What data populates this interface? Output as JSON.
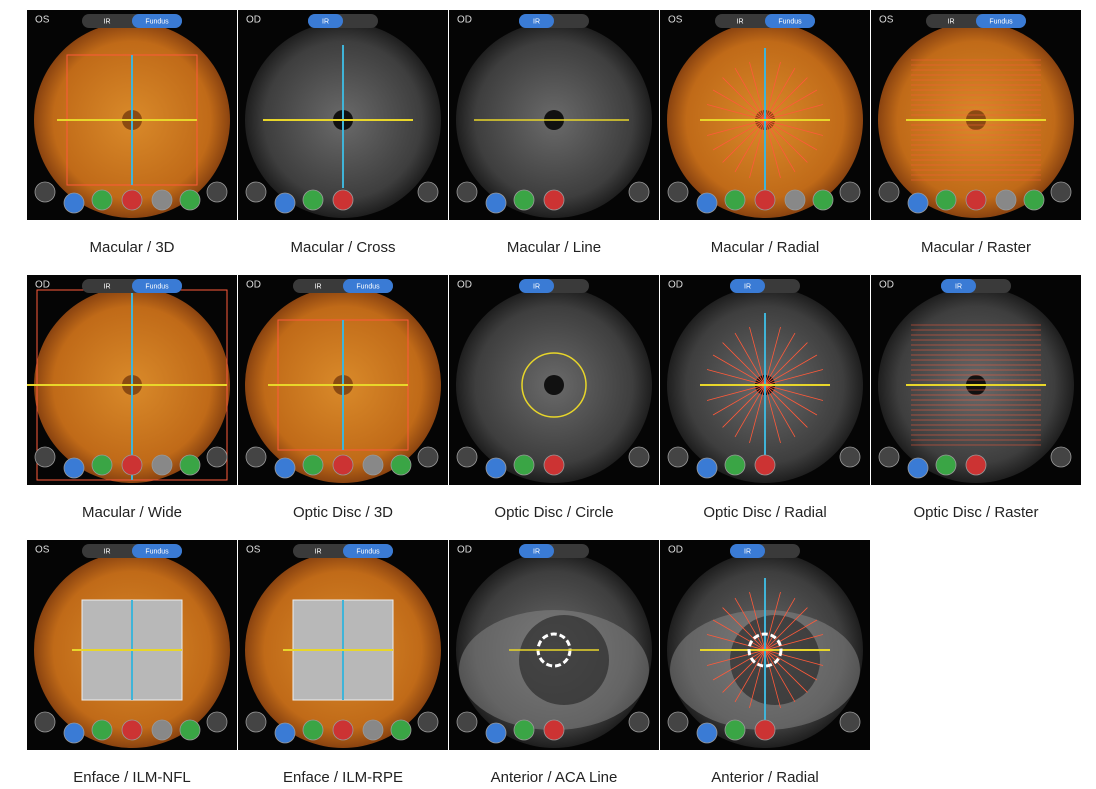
{
  "panels": [
    {
      "eye": "OS",
      "tabs": [
        "IR",
        "Fundus"
      ],
      "active_tab": 1,
      "caption": "Macular / 3D"
    },
    {
      "eye": "OD",
      "tabs": [
        "IR"
      ],
      "active_tab": 0,
      "caption": "Macular / Cross"
    },
    {
      "eye": "OD",
      "tabs": [
        "IR"
      ],
      "active_tab": 0,
      "caption": "Macular / Line"
    },
    {
      "eye": "OS",
      "tabs": [
        "IR",
        "Fundus"
      ],
      "active_tab": 1,
      "caption": "Macular / Radial"
    },
    {
      "eye": "OS",
      "tabs": [
        "IR",
        "Fundus"
      ],
      "active_tab": 1,
      "caption": "Macular / Raster"
    },
    {
      "eye": "OD",
      "tabs": [
        "IR",
        "Fundus"
      ],
      "active_tab": 1,
      "caption": "Macular / Wide"
    },
    {
      "eye": "OD",
      "tabs": [
        "IR",
        "Fundus"
      ],
      "active_tab": 1,
      "caption": "Optic Disc / 3D"
    },
    {
      "eye": "OD",
      "tabs": [
        "IR"
      ],
      "active_tab": 0,
      "caption": "Optic Disc / Circle"
    },
    {
      "eye": "OD",
      "tabs": [
        "IR"
      ],
      "active_tab": 0,
      "caption": "Optic Disc / Radial"
    },
    {
      "eye": "OD",
      "tabs": [
        "IR"
      ],
      "active_tab": 0,
      "caption": "Optic Disc / Raster"
    },
    {
      "eye": "OS",
      "tabs": [
        "IR",
        "Fundus"
      ],
      "active_tab": 1,
      "caption": "Enface / ILM-NFL"
    },
    {
      "eye": "OS",
      "tabs": [
        "IR",
        "Fundus"
      ],
      "active_tab": 1,
      "caption": "Enface / ILM-RPE"
    },
    {
      "eye": "OD",
      "tabs": [
        "IR"
      ],
      "active_tab": 0,
      "caption": "Anterior / ACA Line"
    },
    {
      "eye": "OD",
      "tabs": [
        "IR"
      ],
      "active_tab": 0,
      "caption": "Anterior / Radial"
    }
  ]
}
